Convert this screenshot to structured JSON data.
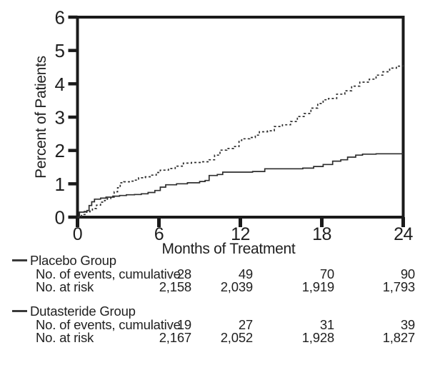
{
  "chart_data": {
    "type": "line",
    "title": "",
    "xlabel": "Months of Treatment",
    "ylabel": "Percent of Patients",
    "xlim": [
      0,
      24
    ],
    "ylim": [
      0,
      6
    ],
    "x_ticks": [
      "0",
      "6",
      "12",
      "18",
      "24"
    ],
    "y_ticks": [
      "0",
      "1",
      "2",
      "3",
      "4",
      "5",
      "6"
    ],
    "grid": false,
    "legend_position": "below-chart-table",
    "interpolation": "step-after",
    "series": [
      {
        "name": "Placebo Group",
        "line_style": "dashed",
        "color": "#2e2e2e",
        "points": [
          [
            0,
            0
          ],
          [
            0.3,
            0.08
          ],
          [
            0.55,
            0.15
          ],
          [
            0.9,
            0.18
          ],
          [
            1.1,
            0.26
          ],
          [
            1.4,
            0.36
          ],
          [
            1.7,
            0.45
          ],
          [
            2.0,
            0.5
          ],
          [
            2.2,
            0.56
          ],
          [
            2.45,
            0.63
          ],
          [
            2.7,
            0.76
          ],
          [
            2.95,
            0.88
          ],
          [
            3.15,
            1.03
          ],
          [
            3.4,
            1.06
          ],
          [
            3.9,
            1.08
          ],
          [
            4.2,
            1.11
          ],
          [
            4.5,
            1.18
          ],
          [
            5.0,
            1.21
          ],
          [
            5.4,
            1.26
          ],
          [
            5.8,
            1.34
          ],
          [
            6.1,
            1.41
          ],
          [
            6.7,
            1.46
          ],
          [
            7.2,
            1.53
          ],
          [
            7.8,
            1.62
          ],
          [
            8.4,
            1.64
          ],
          [
            9.1,
            1.66
          ],
          [
            9.7,
            1.72
          ],
          [
            10.1,
            1.86
          ],
          [
            10.5,
            2.01
          ],
          [
            11.0,
            2.06
          ],
          [
            11.5,
            2.12
          ],
          [
            11.9,
            2.3
          ],
          [
            12.1,
            2.35
          ],
          [
            12.7,
            2.39
          ],
          [
            13.1,
            2.46
          ],
          [
            13.4,
            2.56
          ],
          [
            14.0,
            2.59
          ],
          [
            14.5,
            2.72
          ],
          [
            15.1,
            2.77
          ],
          [
            15.7,
            2.87
          ],
          [
            16.2,
            3.02
          ],
          [
            16.7,
            3.11
          ],
          [
            17.2,
            3.27
          ],
          [
            17.7,
            3.41
          ],
          [
            18.1,
            3.52
          ],
          [
            18.5,
            3.56
          ],
          [
            19.1,
            3.69
          ],
          [
            19.7,
            3.79
          ],
          [
            20.2,
            3.93
          ],
          [
            20.8,
            4.05
          ],
          [
            21.5,
            4.14
          ],
          [
            22.0,
            4.26
          ],
          [
            22.5,
            4.36
          ],
          [
            23.0,
            4.47
          ],
          [
            23.5,
            4.53
          ],
          [
            24,
            4.6
          ]
        ]
      },
      {
        "name": "Dutasteride Group",
        "line_style": "solid",
        "color": "#2e2e2e",
        "points": [
          [
            0,
            0
          ],
          [
            0.15,
            0.15
          ],
          [
            0.5,
            0.17
          ],
          [
            0.7,
            0.2
          ],
          [
            0.85,
            0.35
          ],
          [
            1.05,
            0.46
          ],
          [
            1.25,
            0.54
          ],
          [
            1.7,
            0.57
          ],
          [
            2.1,
            0.6
          ],
          [
            2.7,
            0.63
          ],
          [
            3.1,
            0.65
          ],
          [
            3.6,
            0.67
          ],
          [
            4.2,
            0.68
          ],
          [
            4.7,
            0.7
          ],
          [
            5.2,
            0.74
          ],
          [
            5.7,
            0.8
          ],
          [
            6.1,
            0.9
          ],
          [
            6.5,
            0.97
          ],
          [
            7.3,
            1.0
          ],
          [
            8.1,
            1.03
          ],
          [
            9.0,
            1.07
          ],
          [
            9.4,
            1.1
          ],
          [
            9.7,
            1.25
          ],
          [
            10.3,
            1.28
          ],
          [
            10.7,
            1.35
          ],
          [
            11.6,
            1.35
          ],
          [
            12.9,
            1.37
          ],
          [
            13.8,
            1.45
          ],
          [
            15.1,
            1.45
          ],
          [
            16.6,
            1.47
          ],
          [
            17.4,
            1.52
          ],
          [
            18.1,
            1.58
          ],
          [
            18.8,
            1.68
          ],
          [
            19.4,
            1.72
          ],
          [
            19.9,
            1.8
          ],
          [
            20.5,
            1.86
          ],
          [
            21.0,
            1.89
          ],
          [
            22.0,
            1.9
          ],
          [
            23.0,
            1.9
          ],
          [
            24,
            1.9
          ]
        ]
      }
    ]
  },
  "risk_table": {
    "columns_months": [
      "6",
      "12",
      "18",
      "24"
    ],
    "groups": [
      {
        "name": "Placebo Group",
        "rows": [
          {
            "label": "No. of events, cumulative",
            "values": [
              "28",
              "49",
              "70",
              "90"
            ]
          },
          {
            "label": "No. at risk",
            "values": [
              "2,158",
              "2,039",
              "1,919",
              "1,793"
            ]
          }
        ]
      },
      {
        "name": "Dutasteride Group",
        "rows": [
          {
            "label": "No. of events, cumulative",
            "values": [
              "19",
              "27",
              "31",
              "39"
            ]
          },
          {
            "label": "No. at risk",
            "values": [
              "2,167",
              "2,052",
              "1,928",
              "1,827"
            ]
          }
        ]
      }
    ]
  },
  "colors": {
    "axis": "#1a1a1a",
    "text": "#1f1f1f",
    "line": "#2e2e2e",
    "background": "#ffffff"
  }
}
